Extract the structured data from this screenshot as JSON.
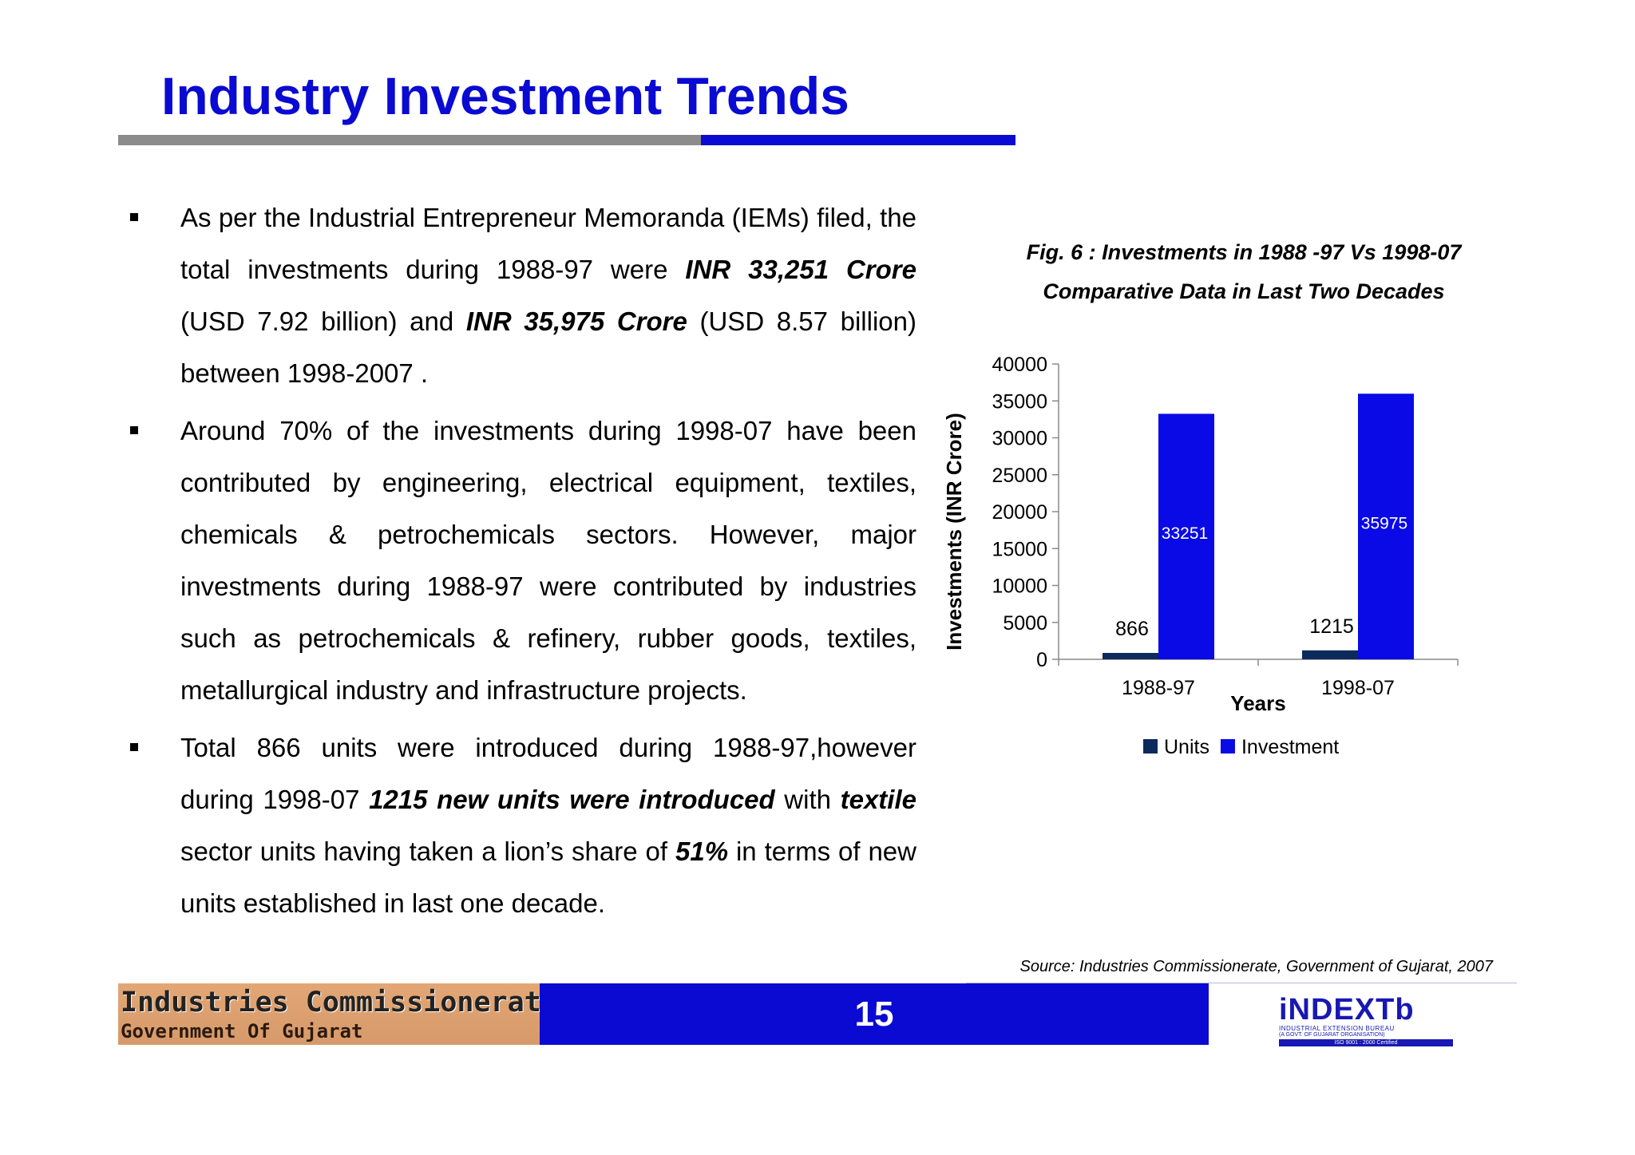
{
  "page": {
    "title": "Industry Investment Trends",
    "page_number": "15",
    "source": "Source: Industries Commissionerate, Government of Gujarat, 2007"
  },
  "bullets": [
    {
      "segments": [
        {
          "text": "As per the Industrial Entrepreneur Memoranda (IEMs) filed, the total investments during 1988-97 were ",
          "bold_italic": false
        },
        {
          "text": "INR 33,251 Crore",
          "bold_italic": true
        },
        {
          "text": " (USD 7.92 billion) and ",
          "bold_italic": false
        },
        {
          "text": "INR  35,975 Crore",
          "bold_italic": true
        },
        {
          "text": " (USD 8.57 billion) between 1998-2007 .",
          "bold_italic": false
        }
      ]
    },
    {
      "segments": [
        {
          "text": "Around 70% of the investments during 1998-07 have been contributed by engineering, electrical equipment, textiles, chemicals & petrochemicals sectors. However, major investments during 1988-97 were contributed by industries such as petrochemicals & refinery, rubber goods, textiles, metallurgical industry and infrastructure projects.",
          "bold_italic": false
        }
      ]
    },
    {
      "segments": [
        {
          "text": "Total 866 units were introduced during 1988-97,however during 1998-07 ",
          "bold_italic": false
        },
        {
          "text": "1215 new units were introduced",
          "bold_italic": true
        },
        {
          "text": " with ",
          "bold_italic": false
        },
        {
          "text": "textile",
          "bold_italic": true
        },
        {
          "text": " sector units having taken a lion’s share of  ",
          "bold_italic": false
        },
        {
          "text": "51%",
          "bold_italic": true
        },
        {
          "text": "  in terms of new units established in last one decade.",
          "bold_italic": false
        }
      ]
    }
  ],
  "figure": {
    "caption_line1": "Fig. 6 : Investments in 1988 -97 Vs 1998-07",
    "caption_line2": "Comparative Data in Last Two Decades"
  },
  "chart_data": {
    "type": "bar",
    "title": "Investments in 1988 -97 Vs 1998-07",
    "categories": [
      "1988-97",
      "1998-07"
    ],
    "series": [
      {
        "name": "Units",
        "values": [
          866,
          1215
        ],
        "color": "#0d2a5c"
      },
      {
        "name": "Investment",
        "values": [
          33251,
          35975
        ],
        "color": "#0a0ae6"
      }
    ],
    "xlabel": "Years",
    "ylabel": "Investments (INR Crore)",
    "ylim": [
      0,
      40000
    ],
    "yticks": [
      0,
      5000,
      10000,
      15000,
      20000,
      25000,
      30000,
      35000,
      40000
    ],
    "legend_position": "bottom",
    "grid": false
  },
  "footer": {
    "org_name": "Industries Commissionerate",
    "org_sub": "Government Of Gujarat",
    "logo_word": "iNDEXTb",
    "logo_line1": "INDUSTRIAL EXTENSION BUREAU",
    "logo_line2": "(A GOVT. OF GUJARAT ORGANISATION)",
    "logo_cert": "ISO 9001 : 2000 Certified"
  }
}
